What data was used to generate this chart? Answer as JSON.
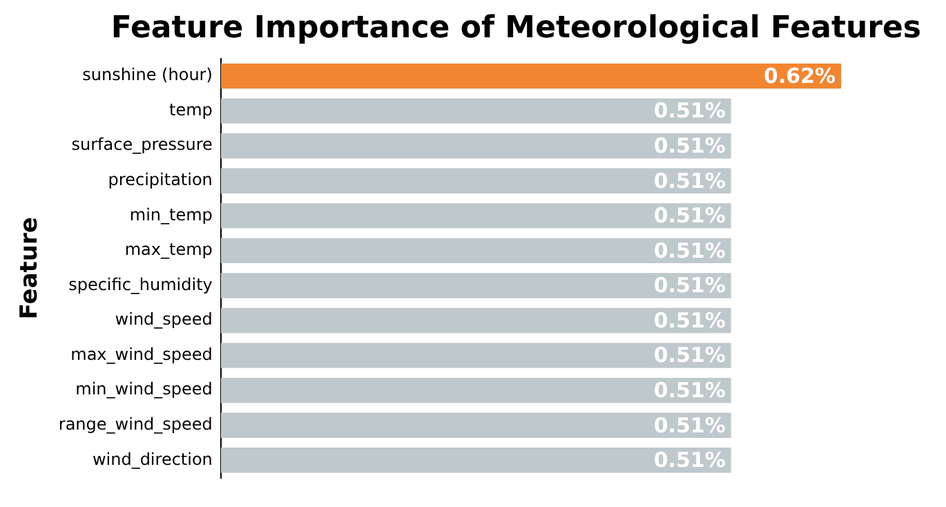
{
  "chart_data": {
    "type": "bar",
    "orientation": "horizontal",
    "title": "Feature Importance of Meteorological Features",
    "ylabel": "Feature",
    "categories": [
      "sunshine (hour)",
      "temp",
      "surface_pressure",
      "precipitation",
      "min_temp",
      "max_temp",
      "specific_humidity",
      "wind_speed",
      "max_wind_speed",
      "min_wind_speed",
      "range_wind_speed",
      "wind_direction"
    ],
    "values": [
      0.62,
      0.51,
      0.51,
      0.51,
      0.51,
      0.51,
      0.51,
      0.51,
      0.51,
      0.51,
      0.51,
      0.51
    ],
    "colors": [
      "#f28530",
      "#bfc8cc",
      "#bfc8cc",
      "#bfc8cc",
      "#bfc8cc",
      "#bfc8cc",
      "#bfc8cc",
      "#bfc8cc",
      "#bfc8cc",
      "#bfc8cc",
      "#bfc8cc",
      "#bfc8cc"
    ],
    "value_labels": [
      "0.62%",
      "0.51%",
      "0.51%",
      "0.51%",
      "0.51%",
      "0.51%",
      "0.51%",
      "0.51%",
      "0.51%",
      "0.51%",
      "0.51%",
      "0.51%"
    ],
    "tick_labels": "y",
    "legend": false
  }
}
